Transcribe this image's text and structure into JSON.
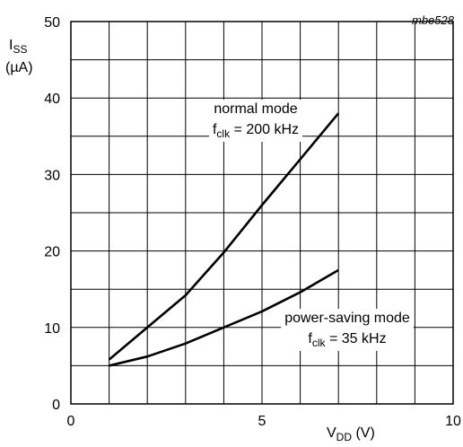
{
  "chart_data": {
    "type": "line",
    "code": "mbe528",
    "ylabel": {
      "main": "I",
      "sub": "SS",
      "unit": "(µA)"
    },
    "xlabel": {
      "main": "V",
      "sub": "DD",
      "unit": " (V)"
    },
    "xlim": [
      0,
      10
    ],
    "ylim": [
      0,
      50
    ],
    "x_ticks": [
      0,
      5,
      10
    ],
    "y_ticks": [
      0,
      10,
      20,
      30,
      40,
      50
    ],
    "x_grid_step": 1,
    "y_grid_step": 5,
    "grid": true,
    "series": [
      {
        "label_line1": "normal mode",
        "label_line2": {
          "f": "f",
          "sub": "clk",
          "rest": " = 200 kHz"
        },
        "x": [
          1,
          2,
          3,
          4,
          5,
          6,
          7
        ],
        "y": [
          5.8,
          10.0,
          14.2,
          19.8,
          26.0,
          32.0,
          38.0
        ]
      },
      {
        "label_line1": "power-saving mode",
        "label_line2": {
          "f": "f",
          "sub": "clk",
          "rest": " = 35 kHz"
        },
        "x": [
          1,
          2,
          3,
          4,
          5,
          6,
          7
        ],
        "y": [
          5.0,
          6.2,
          7.9,
          10.0,
          12.1,
          14.6,
          17.5
        ]
      }
    ]
  }
}
